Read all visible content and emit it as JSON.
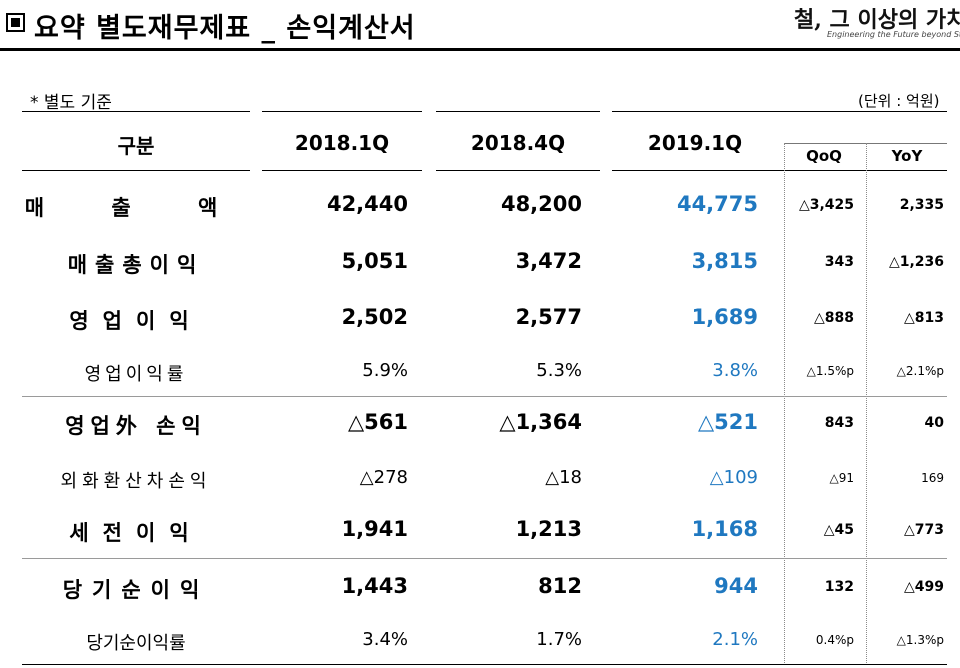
{
  "header": {
    "title": "요약 별도재무제표 _ 손익계산서",
    "logo_main": "철, 그 이상의 가치창조",
    "logo_sub": "Engineering the Future beyond Ste"
  },
  "basis": "* 별도 기준",
  "unit": "(단위 : 억원)",
  "columns": {
    "item": "구분",
    "p1": "2018.1Q",
    "p2": "2018.4Q",
    "p3": "2019.1Q",
    "qoq": "QoQ",
    "yoy": "YoY"
  },
  "rows": [
    {
      "label": "매 출 액",
      "p1": "42,440",
      "p2": "48,200",
      "p3": "44,775",
      "qoq": "△3,425",
      "yoy": "2,335"
    },
    {
      "label": "매출총이익",
      "p1": "5,051",
      "p2": "3,472",
      "p3": "3,815",
      "qoq": "343",
      "yoy": "△1,236"
    },
    {
      "label": "영업이익",
      "p1": "2,502",
      "p2": "2,577",
      "p3": "1,689",
      "qoq": "△888",
      "yoy": "△813"
    },
    {
      "label": "영업이익률",
      "p1": "5.9%",
      "p2": "5.3%",
      "p3": "3.8%",
      "qoq": "△1.5%p",
      "yoy": "△2.1%p"
    },
    {
      "label": "영업外 손익",
      "p1": "△561",
      "p2": "△1,364",
      "p3": "△521",
      "qoq": "843",
      "yoy": "40"
    },
    {
      "label": "외화환산차손익",
      "p1": "△278",
      "p2": "△18",
      "p3": "△109",
      "qoq": "△91",
      "yoy": "169"
    },
    {
      "label": "세전이익",
      "p1": "1,941",
      "p2": "1,213",
      "p3": "1,168",
      "qoq": "△45",
      "yoy": "△773"
    },
    {
      "label": "당기순이익",
      "p1": "1,443",
      "p2": "812",
      "p3": "944",
      "qoq": "132",
      "yoy": "△499"
    },
    {
      "label": "당기순이익률",
      "p1": "3.4%",
      "p2": "1.7%",
      "p3": "2.1%",
      "qoq": "0.4%p",
      "yoy": "△1.3%p"
    }
  ],
  "colors": {
    "highlight": "#1f78c0",
    "text": "#000000"
  }
}
